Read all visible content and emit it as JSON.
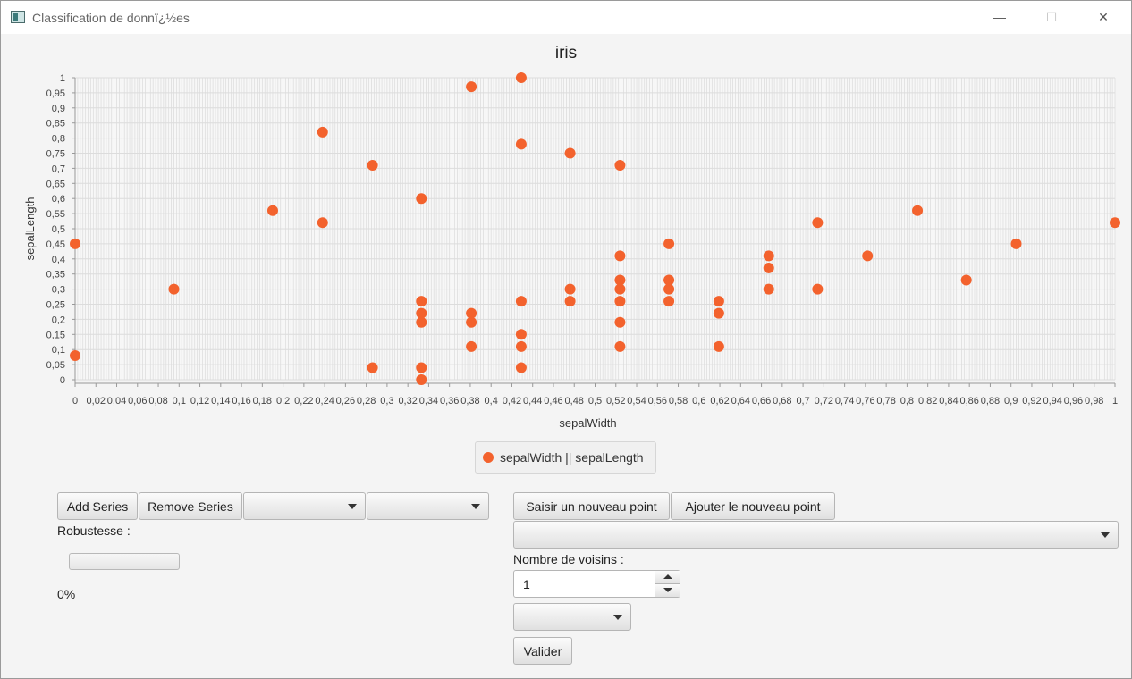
{
  "window": {
    "title": "Classification de donnï¿½es",
    "minimize_glyph": "—",
    "maximize_glyph": "☐",
    "close_glyph": "✕"
  },
  "chart_data": {
    "type": "scatter",
    "title": "iris",
    "xlabel": "sepalWidth",
    "ylabel": "sepalLength",
    "xlim": [
      0,
      1
    ],
    "ylim": [
      0,
      1
    ],
    "x_tick_step": 0.02,
    "y_tick_step": 0.05,
    "grid": true,
    "legend": "bottom-center",
    "series": [
      {
        "name": "sepalWidth || sepalLength",
        "color": "#f3622d",
        "points": [
          [
            0,
            0.45
          ],
          [
            0,
            0.08
          ],
          [
            0.095,
            0.3
          ],
          [
            0.19,
            0.56
          ],
          [
            0.238,
            0.82
          ],
          [
            0.238,
            0.52
          ],
          [
            0.286,
            0.71
          ],
          [
            0.286,
            0.04
          ],
          [
            0.333,
            0.6
          ],
          [
            0.333,
            0.26
          ],
          [
            0.333,
            0.22
          ],
          [
            0.333,
            0.19
          ],
          [
            0.333,
            0.04
          ],
          [
            0.333,
            0.0
          ],
          [
            0.381,
            0.97
          ],
          [
            0.381,
            0.22
          ],
          [
            0.381,
            0.19
          ],
          [
            0.381,
            0.11
          ],
          [
            0.429,
            1.0
          ],
          [
            0.429,
            0.78
          ],
          [
            0.429,
            0.26
          ],
          [
            0.429,
            0.15
          ],
          [
            0.429,
            0.11
          ],
          [
            0.429,
            0.04
          ],
          [
            0.476,
            0.75
          ],
          [
            0.476,
            0.3
          ],
          [
            0.476,
            0.26
          ],
          [
            0.524,
            0.71
          ],
          [
            0.524,
            0.41
          ],
          [
            0.524,
            0.33
          ],
          [
            0.524,
            0.3
          ],
          [
            0.524,
            0.26
          ],
          [
            0.524,
            0.19
          ],
          [
            0.524,
            0.11
          ],
          [
            0.571,
            0.45
          ],
          [
            0.571,
            0.33
          ],
          [
            0.571,
            0.3
          ],
          [
            0.571,
            0.26
          ],
          [
            0.619,
            0.26
          ],
          [
            0.619,
            0.22
          ],
          [
            0.619,
            0.11
          ],
          [
            0.667,
            0.41
          ],
          [
            0.667,
            0.37
          ],
          [
            0.667,
            0.3
          ],
          [
            0.714,
            0.52
          ],
          [
            0.714,
            0.3
          ],
          [
            0.762,
            0.41
          ],
          [
            0.81,
            0.56
          ],
          [
            0.857,
            0.33
          ],
          [
            0.905,
            0.45
          ],
          [
            1.0,
            0.52
          ]
        ]
      }
    ]
  },
  "left_panel": {
    "add_series": "Add Series",
    "remove_series": "Remove Series",
    "combo1_value": "",
    "combo2_value": "",
    "robustness_label": "Robustesse :",
    "progress": 0,
    "progress_text": "0%"
  },
  "right_panel": {
    "enter_point": "Saisir un nouveau point",
    "add_point": "Ajouter le nouveau point",
    "point_combo_value": "",
    "neighbors_label": "Nombre de voisins :",
    "neighbors_value": "1",
    "distance_combo_value": "",
    "validate": "Valider"
  }
}
